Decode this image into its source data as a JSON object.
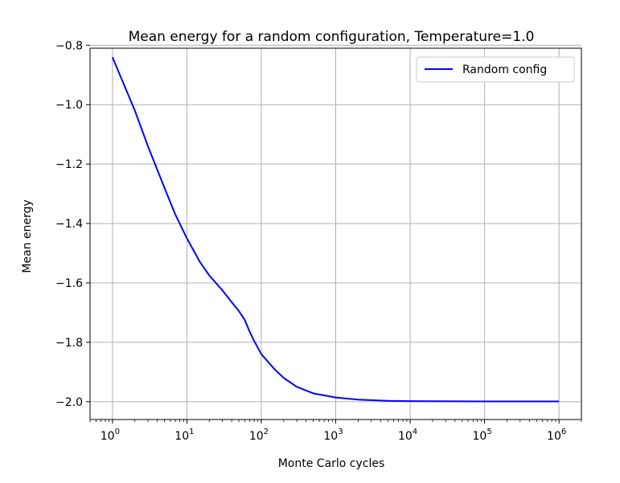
{
  "chart_data": {
    "type": "line",
    "title": "Mean energy for a random configuration, Temperature=1.0",
    "xlabel": "Monte Carlo cycles",
    "ylabel": "Mean energy",
    "xscale": "log",
    "xlim": [
      0.5,
      2000000
    ],
    "ylim": [
      -2.06,
      -0.81
    ],
    "x_ticks": [
      {
        "value": 1,
        "base": "10",
        "exp": "0"
      },
      {
        "value": 10,
        "base": "10",
        "exp": "1"
      },
      {
        "value": 100,
        "base": "10",
        "exp": "2"
      },
      {
        "value": 1000,
        "base": "10",
        "exp": "3"
      },
      {
        "value": 10000,
        "base": "10",
        "exp": "4"
      },
      {
        "value": 100000,
        "base": "10",
        "exp": "5"
      },
      {
        "value": 1000000,
        "base": "10",
        "exp": "6"
      }
    ],
    "y_ticks": [
      {
        "value": -0.8,
        "label": "−0.8"
      },
      {
        "value": -1.0,
        "label": "−1.0"
      },
      {
        "value": -1.2,
        "label": "−1.2"
      },
      {
        "value": -1.4,
        "label": "−1.4"
      },
      {
        "value": -1.6,
        "label": "−1.6"
      },
      {
        "value": -1.8,
        "label": "−1.8"
      },
      {
        "value": -2.0,
        "label": "−2.0"
      }
    ],
    "grid": true,
    "legend_position": "top-right",
    "series": [
      {
        "name": "Random config",
        "color": "#0000ff",
        "x": [
          1,
          2,
          3,
          5,
          7,
          10,
          15,
          20,
          30,
          40,
          50,
          60,
          70,
          80,
          100,
          150,
          200,
          300,
          500,
          1000,
          2000,
          5000,
          10000,
          100000,
          1000000
        ],
        "y": [
          -0.84,
          -1.02,
          -1.14,
          -1.28,
          -1.37,
          -1.45,
          -1.53,
          -1.575,
          -1.625,
          -1.665,
          -1.695,
          -1.725,
          -1.765,
          -1.795,
          -1.84,
          -1.89,
          -1.92,
          -1.95,
          -1.972,
          -1.986,
          -1.993,
          -1.997,
          -1.998,
          -1.999,
          -1.999
        ]
      }
    ]
  }
}
